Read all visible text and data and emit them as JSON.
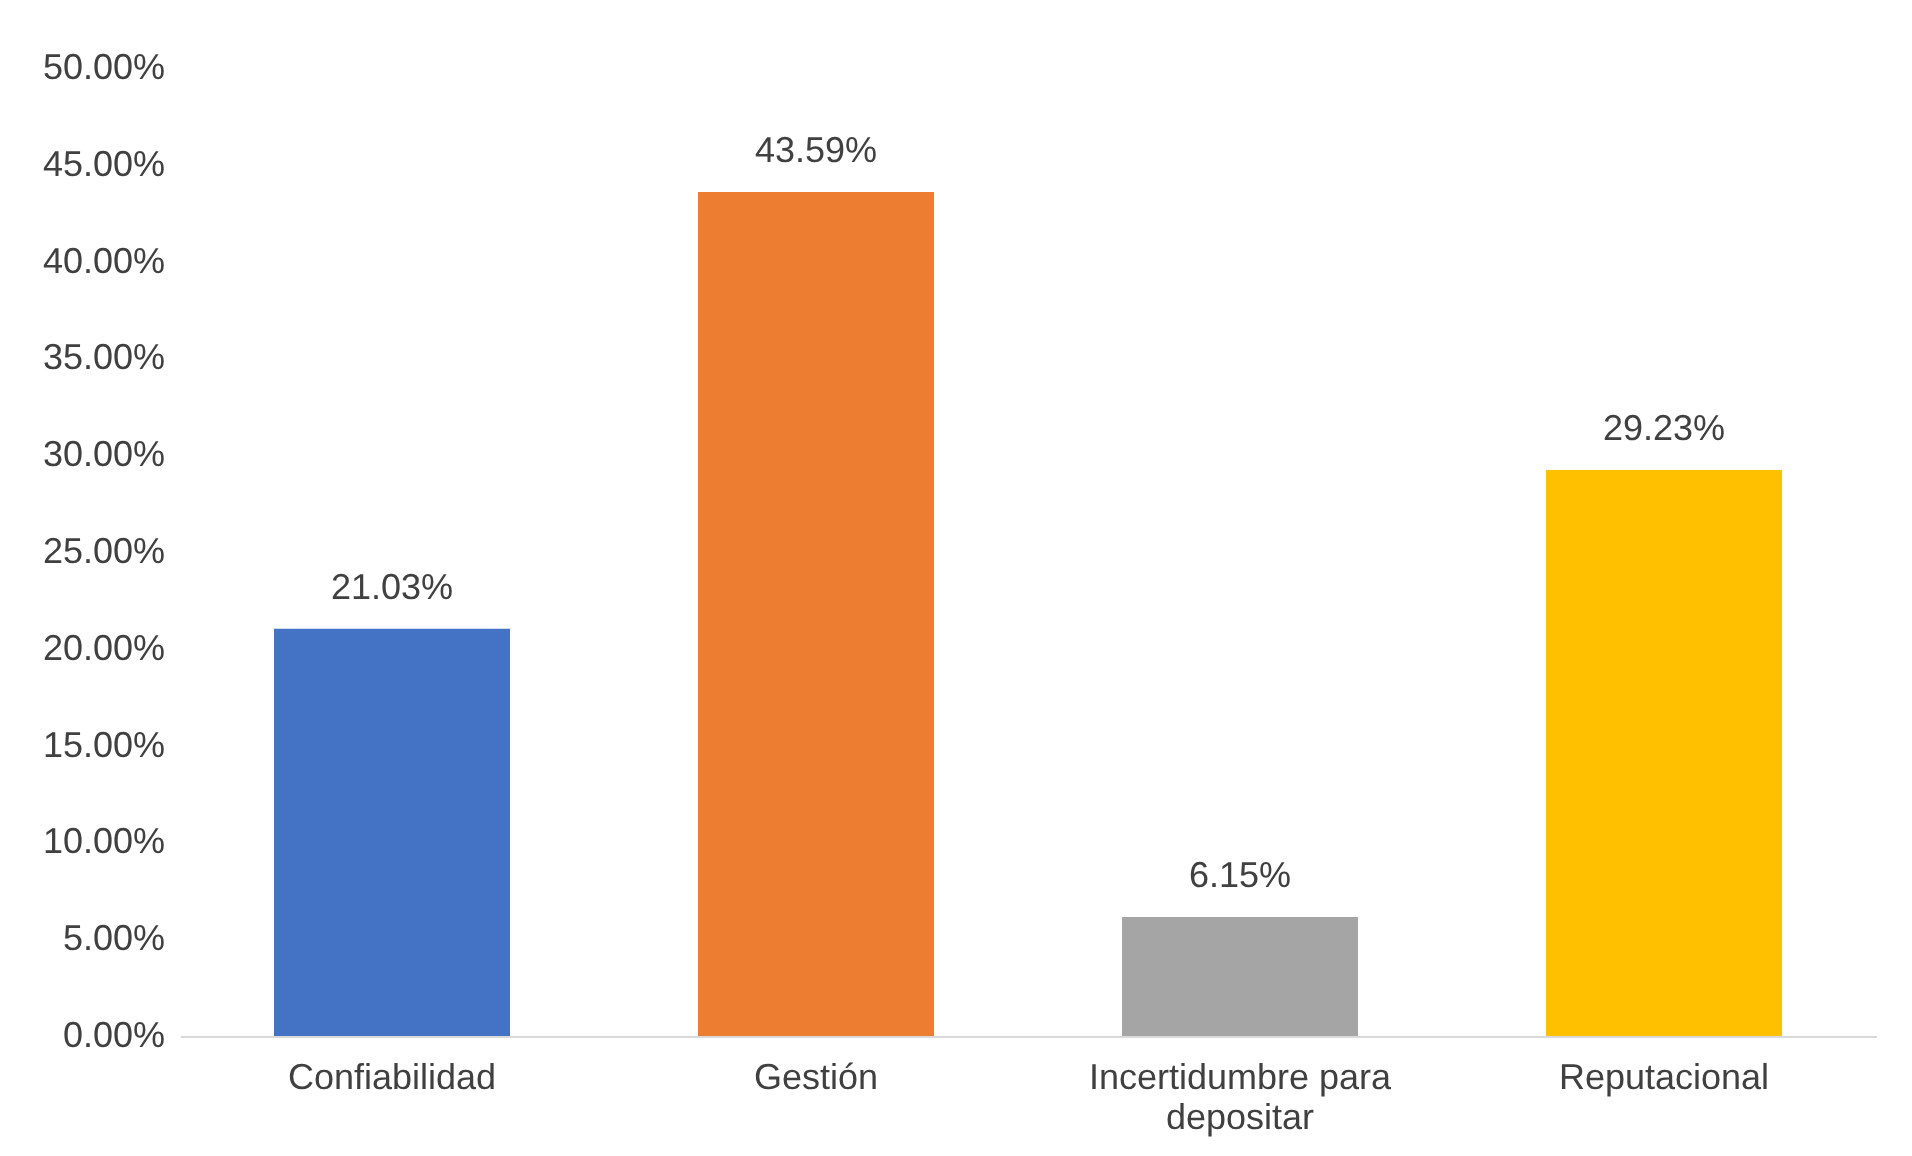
{
  "chart_data": {
    "type": "bar",
    "categories": [
      "Confiabilidad",
      "Gestión",
      "Incertidumbre para depositar",
      "Reputacional"
    ],
    "values": [
      21.03,
      43.59,
      6.15,
      29.23
    ],
    "colors": [
      "#4472c4",
      "#ed7d31",
      "#a5a5a5",
      "#ffc000"
    ],
    "value_labels": [
      "21.03%",
      "43.59%",
      "6.15%",
      "29.23%"
    ],
    "ylim": [
      0,
      50
    ],
    "yticks": [
      {
        "value": 0,
        "label": "0.00%"
      },
      {
        "value": 5,
        "label": "5.00%"
      },
      {
        "value": 10,
        "label": "10.00%"
      },
      {
        "value": 15,
        "label": "15.00%"
      },
      {
        "value": 20,
        "label": "20.00%"
      },
      {
        "value": 25,
        "label": "25.00%"
      },
      {
        "value": 30,
        "label": "30.00%"
      },
      {
        "value": 35,
        "label": "35.00%"
      },
      {
        "value": 40,
        "label": "40.00%"
      },
      {
        "value": 45,
        "label": "45.00%"
      },
      {
        "value": 50,
        "label": "50.00%"
      }
    ],
    "grid": false,
    "legend": false
  }
}
